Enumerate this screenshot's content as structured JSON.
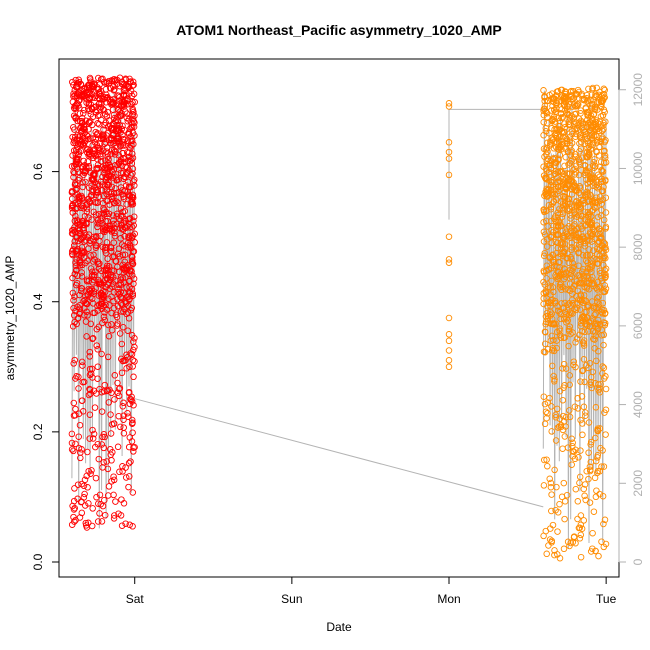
{
  "chart_data": {
    "type": "scatter",
    "title": "ATOM1 Northeast_Pacific asymmetry_1020_AMP",
    "xlabel": "Date",
    "ylabel": "asymmetry_1020_AMP",
    "x_ticks": [
      "Sat",
      "Sun",
      "Mon",
      "Tue"
    ],
    "y_ticks": [
      "0.0",
      "0.2",
      "0.4",
      "0.6"
    ],
    "y2_ticks": [
      "0",
      "2000",
      "4000",
      "6000",
      "8000",
      "10000",
      "12000"
    ],
    "ylim": [
      0.0,
      0.75
    ],
    "y2lim": [
      0,
      12400
    ],
    "xlim_days": [
      -0.45,
      3.05
    ],
    "grid": false,
    "colors": {
      "series_red": "#ff0000",
      "series_orange": "#ff8c00",
      "count_line": "#b4b4b4",
      "axis": "#000000",
      "right_axis": "#b0b0b0"
    },
    "series": [
      {
        "color_key": "series_red",
        "x_range_days": [
          -0.4,
          0.0
        ],
        "y_range": [
          0.05,
          0.745
        ],
        "approx_points": 1300,
        "density_note": "dense cluster, majority 0.4–0.72"
      },
      {
        "color_key": "series_orange",
        "x_range_days": [
          2.0,
          2.02
        ],
        "sample_points": [
          [
            2.0,
            0.705
          ],
          [
            2.0,
            0.7
          ],
          [
            2.0,
            0.645
          ],
          [
            2.0,
            0.63
          ],
          [
            2.0,
            0.62
          ],
          [
            2.0,
            0.595
          ],
          [
            2.0,
            0.5
          ],
          [
            2.0,
            0.465
          ],
          [
            2.0,
            0.46
          ],
          [
            2.0,
            0.375
          ],
          [
            2.0,
            0.35
          ],
          [
            2.0,
            0.34
          ],
          [
            2.0,
            0.325
          ],
          [
            2.0,
            0.31
          ],
          [
            2.0,
            0.3
          ]
        ]
      },
      {
        "color_key": "series_orange",
        "x_range_days": [
          2.6,
          3.0
        ],
        "y_range": [
          0.005,
          0.73
        ],
        "approx_points": 1300,
        "density_note": "dense cluster, majority 0.35–0.68"
      }
    ],
    "count_line_y2": {
      "segments": [
        {
          "x": [
            -0.4,
            0.0
          ],
          "y2": [
            300,
            12000
          ],
          "note": "rapid oscillating vertical spikes"
        },
        {
          "x": [
            0.0,
            2.6
          ],
          "y2": [
            4150,
            1400
          ]
        },
        {
          "x": [
            2.0,
            2.0
          ],
          "y2": [
            8700,
            11500
          ]
        },
        {
          "x": [
            2.0,
            2.6
          ],
          "y2": [
            11500,
            11500
          ]
        },
        {
          "x": [
            2.6,
            3.0
          ],
          "y2": [
            300,
            12000
          ],
          "note": "rapid oscillating vertical spikes"
        }
      ]
    }
  }
}
